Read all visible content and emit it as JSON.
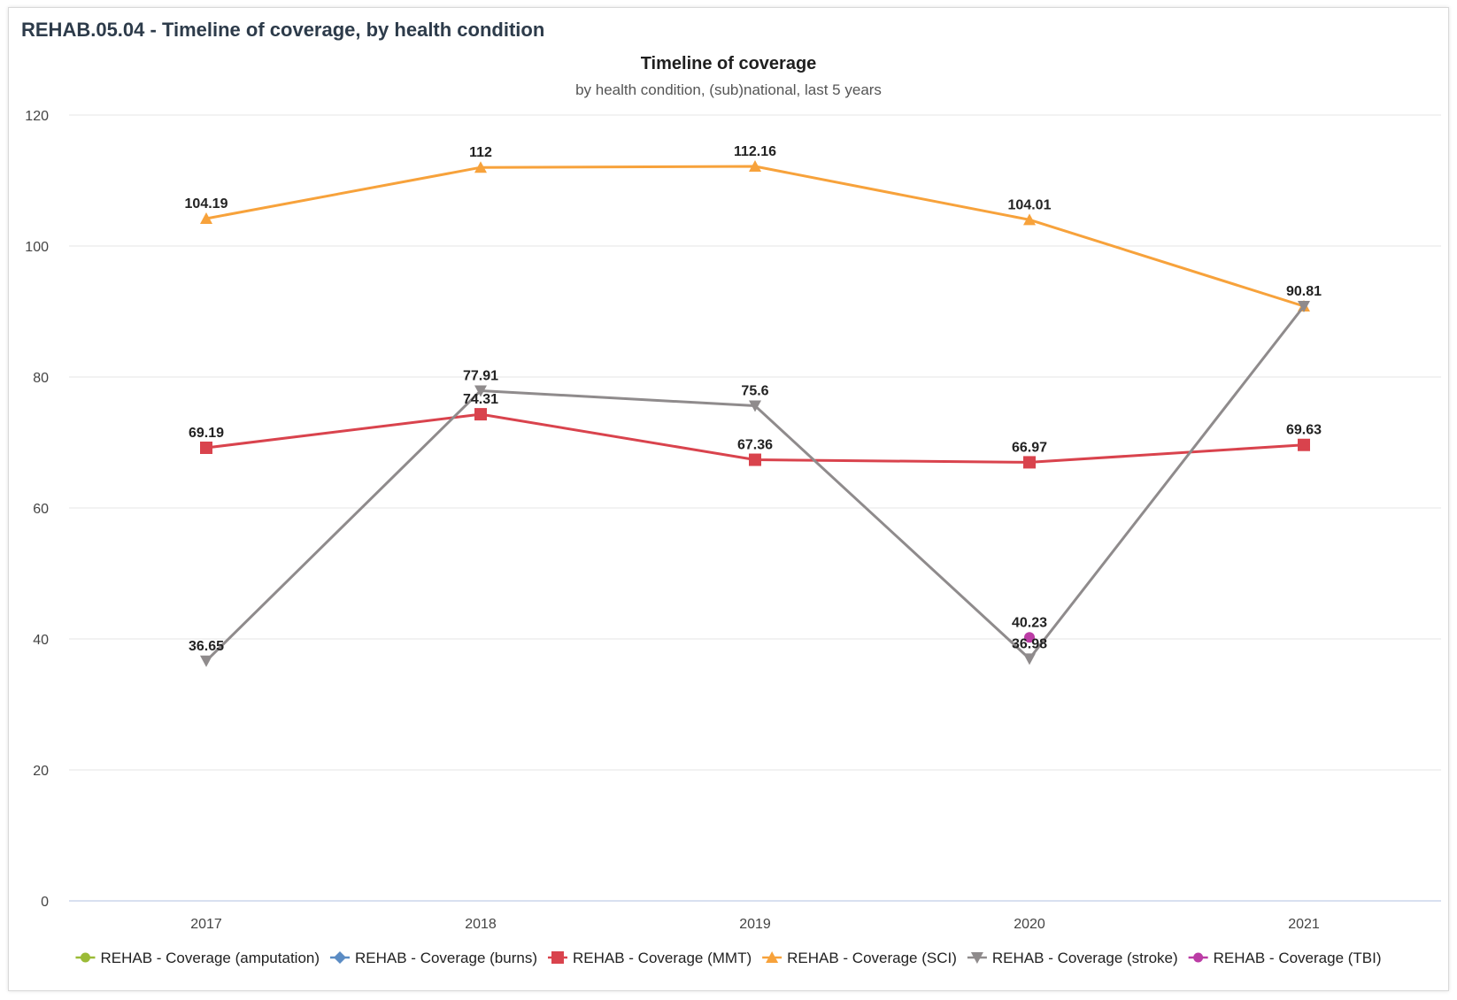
{
  "panel": {
    "title": "REHAB.05.04 - Timeline of coverage, by health condition"
  },
  "chart_data": {
    "type": "line",
    "title": "Timeline of coverage",
    "subtitle": "by health condition, (sub)national, last 5 years",
    "xlabel": "",
    "ylabel": "",
    "categories": [
      "2017",
      "2018",
      "2019",
      "2020",
      "2021"
    ],
    "ylim": [
      0,
      120
    ],
    "yticks": [
      0,
      20,
      40,
      60,
      80,
      100,
      120
    ],
    "grid": true,
    "legend_position": "bottom",
    "series": [
      {
        "name": "REHAB - Coverage (amputation)",
        "color": "#9bbb37",
        "marker": "circle",
        "values": [
          null,
          null,
          null,
          null,
          null
        ]
      },
      {
        "name": "REHAB - Coverage (burns)",
        "color": "#5b8cc4",
        "marker": "diamond",
        "values": [
          null,
          null,
          null,
          null,
          null
        ]
      },
      {
        "name": "REHAB - Coverage (MMT)",
        "color": "#d9434d",
        "marker": "square",
        "values": [
          69.19,
          74.31,
          67.36,
          66.97,
          69.63
        ],
        "labels": [
          "69.19",
          "74.31",
          "67.36",
          "66.97",
          "69.63"
        ]
      },
      {
        "name": "REHAB - Coverage (SCI)",
        "color": "#f7a23b",
        "marker": "triangle",
        "values": [
          104.19,
          112,
          112.16,
          104.01,
          90.81
        ],
        "labels": [
          "104.19",
          "112",
          "112.16",
          "104.01",
          "90.81"
        ]
      },
      {
        "name": "REHAB - Coverage (stroke)",
        "color": "#8f8b8c",
        "marker": "triangle-down",
        "values": [
          36.65,
          77.91,
          75.6,
          36.98,
          90.81
        ],
        "labels": [
          "36.65",
          "77.91",
          "75.6",
          "36.98",
          null
        ]
      },
      {
        "name": "REHAB - Coverage (TBI)",
        "color": "#bb3ca5",
        "marker": "circle",
        "values": [
          null,
          null,
          null,
          40.23,
          null
        ],
        "labels": [
          null,
          null,
          null,
          "40.23",
          null
        ]
      }
    ]
  }
}
